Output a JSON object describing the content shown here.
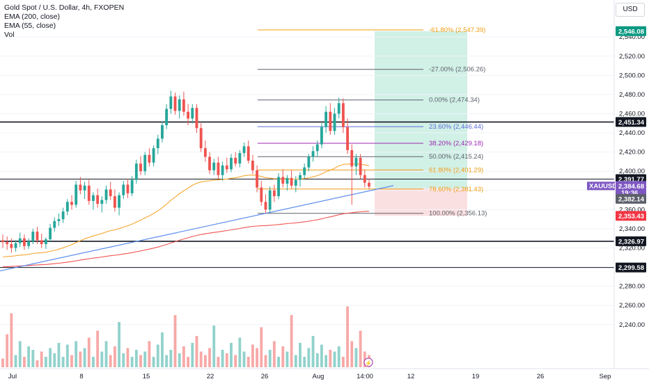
{
  "legend": {
    "title": "Gold Spot / U.S. Dollar, 4h, FXOPEN",
    "ema200": "EMA (200, close)",
    "ema55": "EMA (55, close)",
    "vol": "Vol"
  },
  "currency_button": "USD",
  "colors": {
    "up": "#26a69a",
    "down": "#ef5350",
    "ema200": "#ef5350",
    "ema55": "#f7a632",
    "trendline": "#5b8def",
    "fib_orange": "#f39c12",
    "fib_blue": "#5b6bd6",
    "fib_purple": "#9c27b0",
    "fib_gray": "#5d606b",
    "profit_zone": "#d1f0e6",
    "loss_zone": "#fbe0e2",
    "symbol_tag": "#7e57c2",
    "stop_tag": "#f23645",
    "target_tag": "#089981"
  },
  "chart_data": {
    "type": "candlestick",
    "title": "Gold Spot / U.S. Dollar, 4h, FXOPEN",
    "symbol": "XAUUSD",
    "ylim": [
      2230,
      2560
    ],
    "x_ticks": [
      "Jul",
      "8",
      "15",
      "22",
      "26",
      "Aug",
      "14:00",
      "12",
      "19",
      "26",
      "Sep"
    ],
    "y_ticks": [
      2240,
      2260,
      2280,
      2300,
      2320,
      2340,
      2360,
      2380,
      2400,
      2420,
      2440,
      2460,
      2480,
      2500,
      2520,
      2540
    ],
    "y_tick_labels": [
      "2,240.00",
      "2,260.00",
      "2,280.00",
      "2,300.00",
      "2,320.00",
      "2,340.00",
      "2,360.00",
      "2,380.00",
      "2,400.00",
      "2,420.00",
      "2,440.00",
      "2,460.00",
      "2,480.00",
      "2,500.00",
      "2,520.00",
      "2,540.00"
    ],
    "horizontal_levels": [
      {
        "value": 2451.34,
        "label": "2,451.34"
      },
      {
        "value": 2391.77,
        "label": "2,391.77"
      },
      {
        "value": 2326.97,
        "label": "2,326.97"
      },
      {
        "value": 2299.58,
        "label": "2,299.58"
      }
    ],
    "fib_levels": [
      {
        "label": "-61.80% (2,547.39)",
        "value": 2547.39,
        "color": "orange"
      },
      {
        "label": "-27.00% (2,506.26)",
        "value": 2506.26,
        "color": "gray"
      },
      {
        "label": "0.00% (2,474.34)",
        "value": 2474.34,
        "color": "gray"
      },
      {
        "label": "23.60% (2,446.44)",
        "value": 2446.44,
        "color": "blue"
      },
      {
        "label": "38.20% (2,429.18)",
        "value": 2429.18,
        "color": "purple"
      },
      {
        "label": "50.00% (2,415.24)",
        "value": 2415.24,
        "color": "gray"
      },
      {
        "label": "61.80% (2,401.29)",
        "value": 2401.29,
        "color": "orange"
      },
      {
        "label": "78.60% (2,381.43)",
        "value": 2381.43,
        "color": "orange"
      },
      {
        "label": "100.00% (2,356.13)",
        "value": 2356.13,
        "color": "gray"
      }
    ],
    "position": {
      "entry": 2382.14,
      "target": 2546.08,
      "stop": 2353.43
    },
    "price_tags": {
      "target": "2,546.08",
      "symbol": "XAUUSD",
      "last": "2,384.68",
      "countdown": "19:36",
      "entry": "2,382.14",
      "stop": "2,353.43"
    },
    "ohlc": [
      [
        2328,
        2334,
        2320,
        2326
      ],
      [
        2326,
        2332,
        2318,
        2324
      ],
      [
        2324,
        2330,
        2315,
        2320
      ],
      [
        2320,
        2328,
        2316,
        2325
      ],
      [
        2325,
        2336,
        2321,
        2330
      ],
      [
        2330,
        2334,
        2318,
        2322
      ],
      [
        2322,
        2330,
        2319,
        2327
      ],
      [
        2327,
        2340,
        2324,
        2337
      ],
      [
        2337,
        2342,
        2324,
        2328
      ],
      [
        2328,
        2335,
        2320,
        2324
      ],
      [
        2324,
        2331,
        2319,
        2329
      ],
      [
        2329,
        2345,
        2326,
        2341
      ],
      [
        2341,
        2352,
        2337,
        2348
      ],
      [
        2348,
        2356,
        2343,
        2350
      ],
      [
        2350,
        2362,
        2346,
        2358
      ],
      [
        2358,
        2371,
        2354,
        2368
      ],
      [
        2368,
        2375,
        2360,
        2365
      ],
      [
        2365,
        2390,
        2362,
        2386
      ],
      [
        2386,
        2394,
        2376,
        2380
      ],
      [
        2380,
        2389,
        2371,
        2385
      ],
      [
        2385,
        2391,
        2365,
        2369
      ],
      [
        2369,
        2378,
        2360,
        2375
      ],
      [
        2375,
        2382,
        2362,
        2366
      ],
      [
        2366,
        2374,
        2357,
        2370
      ],
      [
        2370,
        2385,
        2366,
        2381
      ],
      [
        2381,
        2389,
        2370,
        2374
      ],
      [
        2374,
        2381,
        2358,
        2362
      ],
      [
        2362,
        2378,
        2354,
        2375
      ],
      [
        2375,
        2390,
        2371,
        2386
      ],
      [
        2386,
        2392,
        2372,
        2377
      ],
      [
        2377,
        2395,
        2374,
        2391
      ],
      [
        2391,
        2412,
        2387,
        2408
      ],
      [
        2408,
        2416,
        2396,
        2400
      ],
      [
        2400,
        2420,
        2396,
        2417
      ],
      [
        2417,
        2424,
        2405,
        2409
      ],
      [
        2409,
        2427,
        2405,
        2424
      ],
      [
        2424,
        2438,
        2418,
        2434
      ],
      [
        2434,
        2452,
        2430,
        2448
      ],
      [
        2448,
        2470,
        2444,
        2465
      ],
      [
        2465,
        2484,
        2460,
        2478
      ],
      [
        2478,
        2482,
        2459,
        2463
      ],
      [
        2463,
        2479,
        2455,
        2475
      ],
      [
        2475,
        2483,
        2458,
        2462
      ],
      [
        2462,
        2470,
        2448,
        2455
      ],
      [
        2455,
        2470,
        2450,
        2466
      ],
      [
        2466,
        2470,
        2440,
        2445
      ],
      [
        2445,
        2450,
        2420,
        2424
      ],
      [
        2424,
        2432,
        2410,
        2415
      ],
      [
        2415,
        2420,
        2397,
        2401
      ],
      [
        2401,
        2413,
        2396,
        2409
      ],
      [
        2409,
        2415,
        2392,
        2396
      ],
      [
        2396,
        2410,
        2390,
        2406
      ],
      [
        2406,
        2414,
        2398,
        2402
      ],
      [
        2402,
        2418,
        2399,
        2414
      ],
      [
        2414,
        2420,
        2405,
        2408
      ],
      [
        2408,
        2422,
        2404,
        2419
      ],
      [
        2419,
        2430,
        2415,
        2426
      ],
      [
        2426,
        2432,
        2408,
        2411
      ],
      [
        2411,
        2417,
        2397,
        2401
      ],
      [
        2401,
        2406,
        2378,
        2383
      ],
      [
        2383,
        2390,
        2364,
        2368
      ],
      [
        2368,
        2376,
        2356,
        2360
      ],
      [
        2360,
        2384,
        2357,
        2380
      ],
      [
        2380,
        2386,
        2368,
        2374
      ],
      [
        2374,
        2398,
        2371,
        2394
      ],
      [
        2394,
        2402,
        2383,
        2387
      ],
      [
        2387,
        2396,
        2380,
        2393
      ],
      [
        2393,
        2401,
        2382,
        2385
      ],
      [
        2385,
        2395,
        2378,
        2391
      ],
      [
        2391,
        2399,
        2384,
        2396
      ],
      [
        2396,
        2408,
        2392,
        2404
      ],
      [
        2404,
        2418,
        2400,
        2415
      ],
      [
        2415,
        2426,
        2410,
        2421
      ],
      [
        2421,
        2432,
        2415,
        2428
      ],
      [
        2428,
        2450,
        2424,
        2446
      ],
      [
        2446,
        2468,
        2440,
        2462
      ],
      [
        2462,
        2471,
        2438,
        2442
      ],
      [
        2442,
        2466,
        2438,
        2460
      ],
      [
        2460,
        2477,
        2455,
        2471
      ],
      [
        2471,
        2476,
        2440,
        2446
      ],
      [
        2446,
        2455,
        2418,
        2422
      ],
      [
        2422,
        2428,
        2365,
        2405
      ],
      [
        2405,
        2418,
        2396,
        2414
      ],
      [
        2414,
        2418,
        2392,
        2396
      ],
      [
        2396,
        2402,
        2383,
        2388
      ],
      [
        2388,
        2392,
        2381,
        2384
      ]
    ],
    "volume": [
      10,
      38,
      62,
      14,
      30,
      12,
      24,
      20,
      8,
      18,
      12,
      22,
      16,
      28,
      12,
      26,
      14,
      30,
      18,
      22,
      34,
      12,
      42,
      18,
      30,
      14,
      24,
      52,
      16,
      22,
      12,
      20,
      14,
      18,
      30,
      12,
      26,
      40,
      14,
      20,
      60,
      16,
      24,
      12,
      28,
      36,
      18,
      14,
      22,
      48,
      12,
      20,
      16,
      28,
      14,
      34,
      18,
      12,
      26,
      22,
      46,
      14,
      20,
      30,
      12,
      24,
      18,
      60,
      14,
      28,
      12,
      22,
      36,
      16,
      26,
      14,
      20,
      18,
      24,
      12,
      70,
      30,
      22,
      42,
      18,
      14
    ]
  }
}
